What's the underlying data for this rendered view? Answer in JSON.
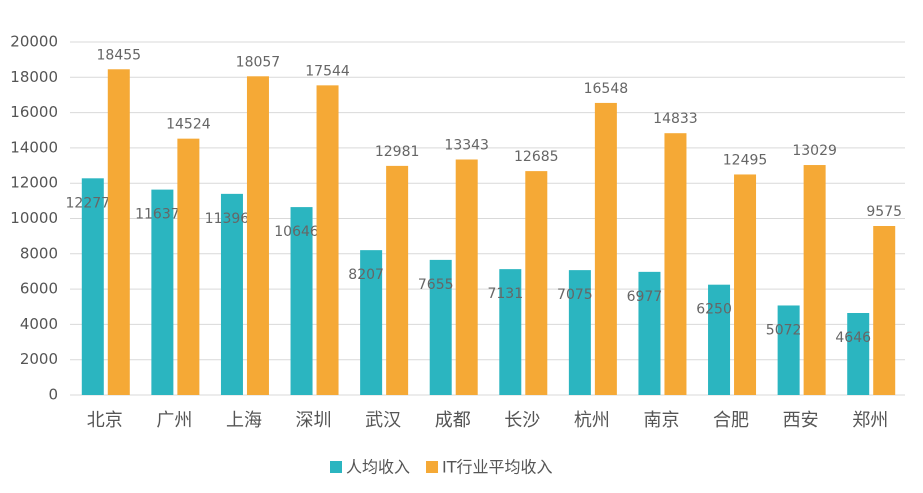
{
  "chart_data": {
    "type": "bar",
    "categories": [
      "北京",
      "广州",
      "上海",
      "深圳",
      "武汉",
      "成都",
      "长沙",
      "杭州",
      "南京",
      "合肥",
      "西安",
      "郑州"
    ],
    "series": [
      {
        "name": "人均收入",
        "color": "#2bb5c0",
        "values": [
          12277,
          11637,
          11396,
          10646,
          8207,
          7655,
          7131,
          7075,
          6977,
          6250,
          5072,
          4646
        ]
      },
      {
        "name": "IT行业平均收入",
        "color": "#f5a936",
        "values": [
          18455,
          14524,
          18057,
          17544,
          12981,
          13343,
          12685,
          16548,
          14833,
          12495,
          13029,
          9575
        ]
      }
    ],
    "ylim": [
      0,
      20000
    ],
    "yticks": [
      0,
      2000,
      4000,
      6000,
      8000,
      10000,
      12000,
      14000,
      16000,
      18000,
      20000
    ],
    "grid": true,
    "legend": "bottom"
  }
}
